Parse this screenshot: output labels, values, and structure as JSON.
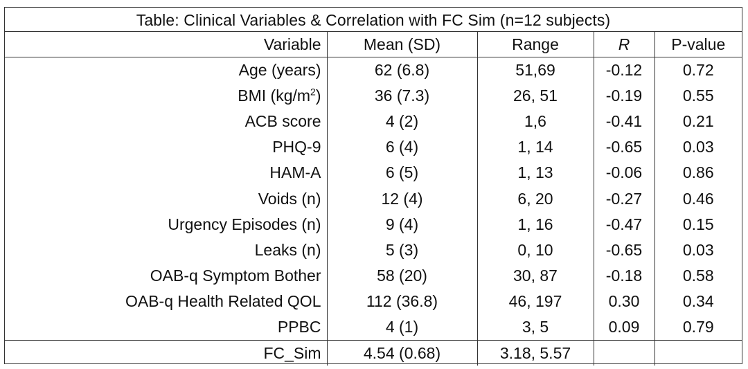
{
  "caption": "Table: Clinical Variables & Correlation with FC  Sim (n=12 subjects)",
  "headers": {
    "variable": "Variable",
    "mean_sd": "Mean (SD)",
    "range": "Range",
    "r": "R",
    "p_value": "P-value"
  },
  "rows": [
    {
      "variable": "Age (years)",
      "mean_sd": "62 (6.8)",
      "range": "51,69",
      "r": "-0.12",
      "p": "0.72"
    },
    {
      "variable": "BMI (kg/m",
      "variable_sup": "2",
      "variable_suffix": ")",
      "mean_sd": "36 (7.3)",
      "range": "26, 51",
      "r": "-0.19",
      "p": "0.55"
    },
    {
      "variable": "ACB score",
      "mean_sd": "4 (2)",
      "range": "1,6",
      "r": "-0.41",
      "p": "0.21"
    },
    {
      "variable": "PHQ-9",
      "mean_sd": "6 (4)",
      "range": "1, 14",
      "r": "-0.65",
      "p": "0.03"
    },
    {
      "variable": "HAM-A",
      "mean_sd": "6 (5)",
      "range": "1, 13",
      "r": "-0.06",
      "p": "0.86"
    },
    {
      "variable": "Voids (n)",
      "mean_sd": "12 (4)",
      "range": "6, 20",
      "r": "-0.27",
      "p": "0.46"
    },
    {
      "variable": "Urgency Episodes (n)",
      "mean_sd": "9 (4)",
      "range": "1, 16",
      "r": "-0.47",
      "p": "0.15"
    },
    {
      "variable": "Leaks (n)",
      "mean_sd": "5 (3)",
      "range": "0, 10",
      "r": "-0.65",
      "p": "0.03"
    },
    {
      "variable": "OAB-q Symptom Bother",
      "mean_sd": "58 (20)",
      "range": "30, 87",
      "r": "-0.18",
      "p": "0.58"
    },
    {
      "variable": "OAB-q Health Related QOL",
      "mean_sd": "112 (36.8)",
      "range": "46, 197",
      "r": "0.30",
      "p": "0.34"
    },
    {
      "variable": "PPBC",
      "mean_sd": "4 (1)",
      "range": "3, 5",
      "r": "0.09",
      "p": "0.79"
    }
  ],
  "footer": {
    "variable": "FC_Sim",
    "mean_sd": "4.54 (0.68)",
    "range": "3.18, 5.57",
    "r": "",
    "p": ""
  }
}
